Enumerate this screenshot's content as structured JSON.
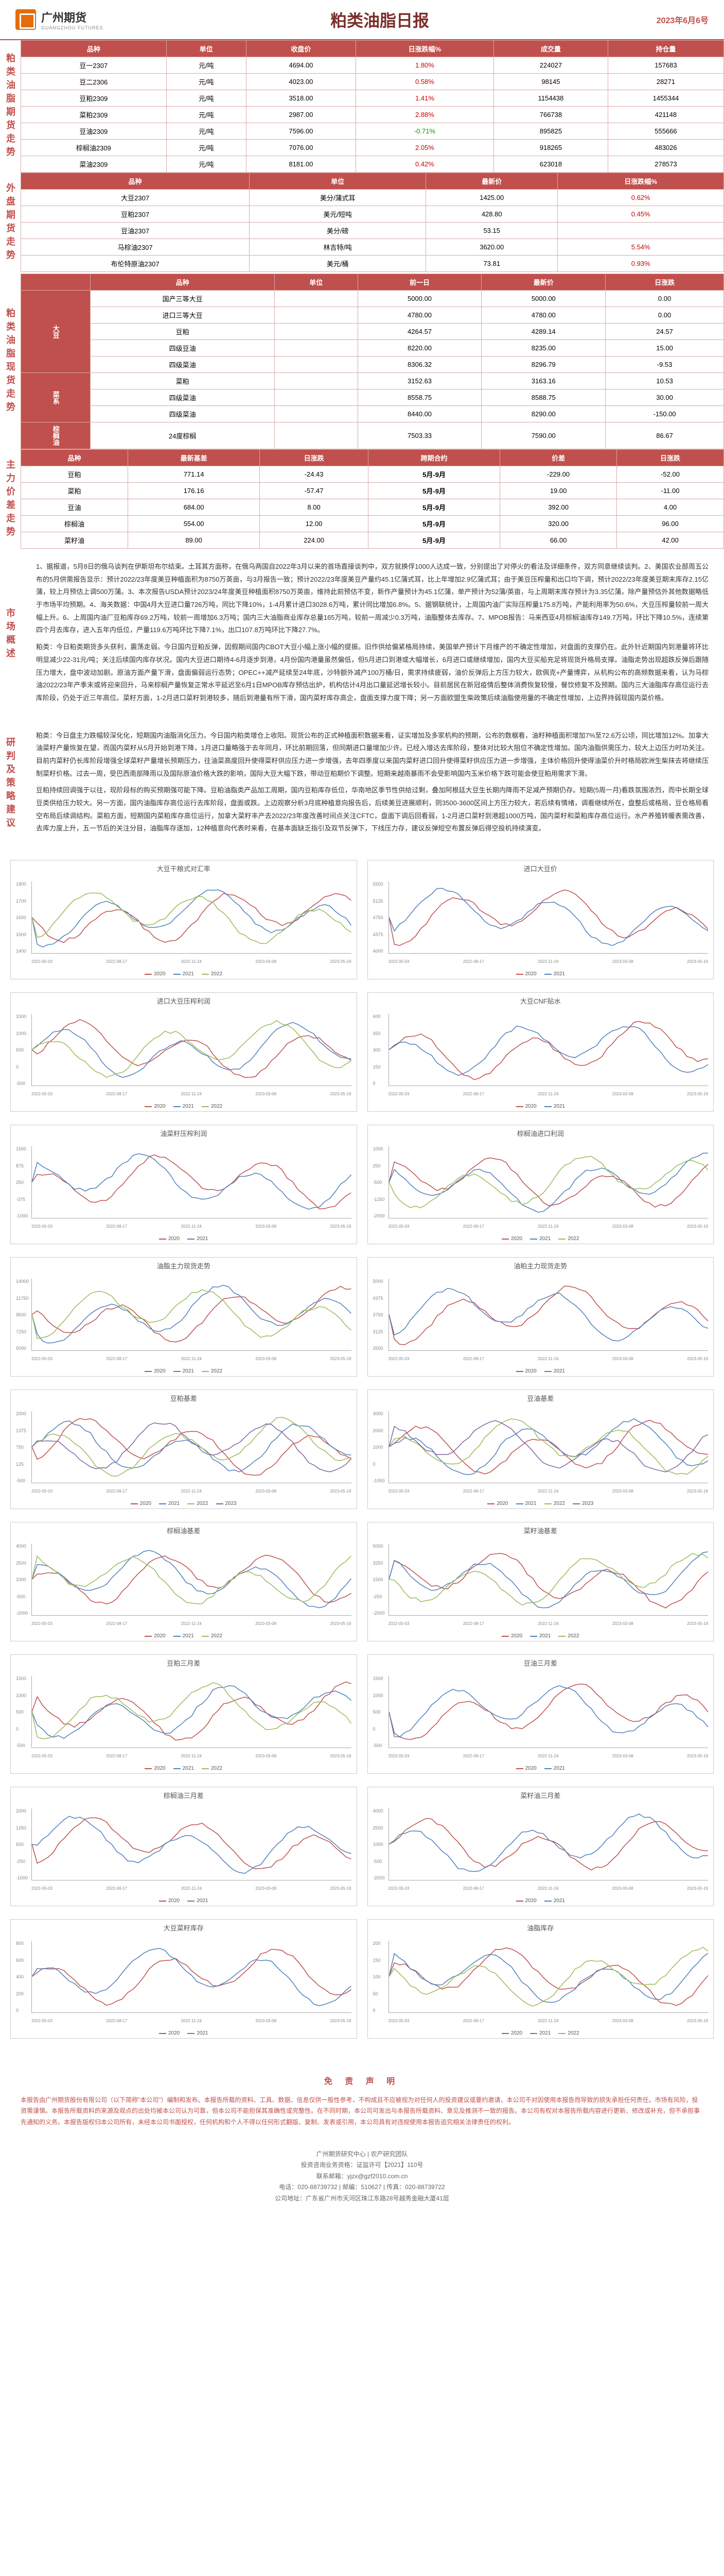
{
  "header": {
    "logo_cn": "广州期货",
    "logo_en": "GUANGZHOU FUTURES",
    "title": "粕类油脂日报",
    "date": "2023年6月6号"
  },
  "section1": {
    "label": "粕类油脂期货走势",
    "columns": [
      "品种",
      "单位",
      "收盘价",
      "日涨跌幅%",
      "成交量",
      "持仓量"
    ],
    "rows": [
      {
        "name": "豆一2307",
        "unit": "元/吨",
        "close": "4694.00",
        "pct": "1.80%",
        "pct_color": "red",
        "vol": "224027",
        "oi": "157683"
      },
      {
        "name": "豆二2306",
        "unit": "元/吨",
        "close": "4023.00",
        "pct": "0.58%",
        "pct_color": "red",
        "vol": "98145",
        "oi": "28271"
      },
      {
        "name": "豆粕2309",
        "unit": "元/吨",
        "close": "3518.00",
        "pct": "1.41%",
        "pct_color": "red",
        "vol": "1154438",
        "oi": "1455344"
      },
      {
        "name": "菜粕2309",
        "unit": "元/吨",
        "close": "2987.00",
        "pct": "2.88%",
        "pct_color": "red",
        "vol": "766738",
        "oi": "421148"
      },
      {
        "name": "豆油2309",
        "unit": "元/吨",
        "close": "7596.00",
        "pct": "-0.71%",
        "pct_color": "green",
        "vol": "895825",
        "oi": "555666"
      },
      {
        "name": "棕榈油2309",
        "unit": "元/吨",
        "close": "7076.00",
        "pct": "2.05%",
        "pct_color": "red",
        "vol": "918265",
        "oi": "483026"
      },
      {
        "name": "菜油2309",
        "unit": "元/吨",
        "close": "8181.00",
        "pct": "0.42%",
        "pct_color": "red",
        "vol": "623018",
        "oi": "278573"
      }
    ]
  },
  "section2": {
    "label": "外盘期货走势",
    "columns": [
      "品种",
      "单位",
      "最新价",
      "日涨跌幅%"
    ],
    "rows": [
      {
        "name": "大豆2307",
        "unit": "美分/蒲式耳",
        "close": "1425.00",
        "pct": "0.62%",
        "pct_color": "red"
      },
      {
        "name": "豆粕2307",
        "unit": "美元/短吨",
        "close": "428.80",
        "pct": "0.45%",
        "pct_color": "red"
      },
      {
        "name": "豆油2307",
        "unit": "美分/磅",
        "close": "53.15",
        "pct": "",
        "pct_color": ""
      },
      {
        "name": "马棕油2307",
        "unit": "林吉特/吨",
        "close": "3620.00",
        "pct": "5.54%",
        "pct_color": "red"
      },
      {
        "name": "布伦特原油2307",
        "unit": "美元/桶",
        "close": "73.81",
        "pct": "0.93%",
        "pct_color": "red"
      }
    ]
  },
  "section3": {
    "label": "粕类油脂现货走势",
    "columns": [
      "品种",
      "单位",
      "前一日",
      "最新价",
      "日涨跌"
    ],
    "groups": [
      {
        "category": "大豆",
        "rows": [
          {
            "name": "国产三等大豆",
            "prev": "5000.00",
            "latest": "5000.00",
            "chg": "0.00"
          },
          {
            "name": "进口三等大豆",
            "prev": "4780.00",
            "latest": "4780.00",
            "chg": "0.00"
          },
          {
            "name": "豆粕",
            "prev": "4264.57",
            "latest": "4289.14",
            "chg": "24.57"
          },
          {
            "name": "四级豆油",
            "prev": "8220.00",
            "latest": "8235.00",
            "chg": "15.00"
          },
          {
            "name": "四级菜油",
            "prev": "8306.32",
            "latest": "8296.79",
            "chg": "-9.53"
          }
        ]
      },
      {
        "category": "菜系",
        "rows": [
          {
            "name": "菜粕",
            "prev": "3152.63",
            "latest": "3163.16",
            "chg": "10.53"
          },
          {
            "name": "四级菜油",
            "prev": "8558.75",
            "latest": "8588.75",
            "chg": "30.00"
          },
          {
            "name": "四级菜油",
            "prev": "8440.00",
            "latest": "8290.00",
            "chg": "-150.00"
          }
        ]
      },
      {
        "category": "棕榈油",
        "rows": [
          {
            "name": "24度棕榈",
            "prev": "7503.33",
            "latest": "7590.00",
            "chg": "86.67"
          }
        ]
      }
    ]
  },
  "section4": {
    "label": "主力价差走势",
    "columns": [
      "品种",
      "最新基差",
      "日涨跌",
      "跨期合约",
      "价差",
      "日涨跌"
    ],
    "rows": [
      {
        "name": "豆粕",
        "basis": "771.14",
        "chg": "-24.43",
        "spread_name": "5月-9月",
        "spread": "-229.00",
        "spread_chg": "-52.00"
      },
      {
        "name": "菜粕",
        "basis": "176.16",
        "chg": "-57.47",
        "spread_name": "5月-9月",
        "spread": "19.00",
        "spread_chg": "-11.00"
      },
      {
        "name": "豆油",
        "basis": "684.00",
        "chg": "8.00",
        "spread_name": "5月-9月",
        "spread": "392.00",
        "spread_chg": "4.00"
      },
      {
        "name": "棕榈油",
        "basis": "554.00",
        "chg": "12.00",
        "spread_name": "5月-9月",
        "spread": "320.00",
        "spread_chg": "96.00"
      },
      {
        "name": "菜籽油",
        "basis": "89.00",
        "chg": "224.00",
        "spread_name": "5月-9月",
        "spread": "66.00",
        "spread_chg": "42.00"
      }
    ]
  },
  "section5": {
    "label": "市场概述",
    "paragraphs": [
      "1、据报道，5月8日的俄乌谈判在伊斯坦布尔结束。土耳其方面称，在俄乌两国自2022年3月以来的首场直接谈判中，双方就换俘1000人达成一致，分别提出了对停火的看法及详细条件，双方同意继续谈判。2、美国农业部周五公布的5月供需报告显示：预计2022/23年度美豆种植面积为8750万英亩，与3月报告一致；预计2022/23年度美豆产量约45.1亿蒲式耳，比上年增加2.9亿蒲式耳；由于美豆压榨量和出口均下调，预计2022/23年度美豆期末库存2.15亿蒲，较上月预估上调500万蒲。3、本次报告USDA预计2023/24年度美豆种植面积8750万英亩，维持此前预估不变，新作产量预计为45.1亿蒲，单产预计为52蒲/英亩，与上周期末库存预计为3.35亿蒲，除产量预估外其他数据略低于市场平均预期。4、海关数据：中国4月大豆进口量726万吨，同比下降10%，1-4月累计进口3028.6万吨，累计同比增加6.8%。5、据钢联统计，上周国内油厂实际压榨量175.8万吨，产能利用率为50.6%，大豆压榨量较前一周大幅上升。6、上周国内油厂豆粕库存69.2万吨，较前一周增加6.3万吨；国内三大油脂商业库存总量165万吨，较前一周减少0.3万吨，油脂整体去库存。7、MPOB报告：马来西亚4月棕榈油库存149.7万吨，环比下降10.5%，连续第四个月去库存，进入五年内低位，产量119.6万吨环比下降7.1%，出口107.8万吨环比下降27.7%。",
      "粕类：今日粕类期货多头获利，震荡走弱。今日国内豆粕反弹，因假期间国内CBOT大豆小幅上涨小幅的提振。旧作供给偏紧格局持续，美国单产预计下月维产的不确定性增加，对盘面的支撑仍在。此外针近期国内到港量将环比明显减少22-31元/吨；关注后续国内库存状况。国内大豆进口期待4-6月逐步到港，4月份国内港量虽然偏低，但5月进口到港或大幅增长，6月进口或继续增加，国内大豆买船充足将现货升格局支撑。油脂走势出现超跌反弹后跟随压力增大，盘中波动加剧。原油方面产量下滑，盘面偏弱运行态势；OPEC++减产延续至24年底，沙特额外减产100万桶/日，需求持续疲弱，油价反弹后上方压力较大，欧佩克+产量博弈，从机构公布的高频数据来看，认为马棕油2022/23年产季末或将迎来回升，马来棕榈产量恢复正常水平延迟至6月1日MPOB库存预估出炉，机构估计4月出口量延迟增长较小。目前居民在新冠疫情后整体消费恢复较慢，餐饮修复不及预期。国内三大油脂库存高位运行去库阶段，仍处于近三年高位。菜籽方面，1-2月进口菜籽到港较多，随后到港量有所下滑，国内菜籽库存高企，盘面支撑力度下降；另一方面欧盟生柴政策后续油脂使用量的不确定性增加，上边界持弱现国内菜价格。"
    ]
  },
  "section6": {
    "label": "研判及策略建议",
    "paragraphs": [
      "粕类：今日盘主力跌幅较深化化，短期国内油脂消化压力。今日国内粕类增仓上收阳。现货公布的正式种植面积数据来看，证实增加及多家机构的预期，公布的数椐看，油籽种植面积增加7%至72.6万公顷，同比增加12%。加拿大油菜籽产量恢复在望，而国内菜籽从5月开始到港下降，1月进口量略强于去年同月，环比前期回落，但同期进口量增加少许。已经入增达去库阶段，整体对比较大阻位不确定性增加。国内油脂供需压力，较大上边压力时功关注。目前内菜籽仍长库阶段增强全球菜籽产量增长预期压力，往油菜高度回升使得菜籽供应压力进一步增强，去年四季度以来国内菜籽进口回升使得菜籽供应压力进一步增强，主体价格回升使得油菜价升时格局欧洲生柴抹去将继续压制菜籽价格。过去一周，受巴西南部降雨以及国际原油价格大跌的影响，国际大豆大幅下跌，带动豆粕期价下调整。短期来越南暴雨不会受影响国内玉米价格下跌可能会使豆粕用需求下滑。",
      "豆粕持续回调强于以往，现阶段标的购买预期强可能下降。豆粕油脂类产品加工周期，国内豆粕库存低位，华南地区季节性供给过剩，叠加阿根廷大豆生长期内降雨不足减产预期仍存。短期(5周一月)看跌氛围浓烈，而中长期全球豆类供给压力较大。另一方面，国内油脂库存高位运行去库阶段，盘面或跌。上边观察分析3月底种植意向报告后，后续美豆进展顺利，则3500-3600区间上方压力较大，若后续有情绪，调看继续所在，盘整后或格局，豆仓格局看空布局后续调结构。菜粕方面，短期国内菜粕库存高位运行，加拿大菜籽丰产去2022/23年度改善时间点关注CFTC，盘面下调后回看弱，1-2月进口菜籽到港超1000万吨，国内菜籽和菜粕库存高位运行。水产养殖转暖表需改善，去库力度上升，五一节后的关注分目，油脂库存逐加，12种植意向代表时来看，在基本面缺乏指引及双节反弹下，下线压力存，建议反弹短空布置反弹后得空投机持续演变。"
    ]
  },
  "charts": [
    {
      "title": "大豆干粮式对汇率",
      "y_range": [
        1400,
        1800
      ],
      "lines": [
        {
          "color": "#c0504d"
        },
        {
          "color": "#4f81bd"
        },
        {
          "color": "#9bbb59"
        }
      ]
    },
    {
      "title": "进口大豆价",
      "y_range": [
        4000,
        5500
      ],
      "lines": [
        {
          "color": "#c0504d"
        },
        {
          "color": "#4f81bd"
        }
      ]
    },
    {
      "title": "进口大豆压榨利润",
      "y_range": [
        -500,
        1500
      ],
      "lines": [
        {
          "color": "#c0504d"
        },
        {
          "color": "#4f81bd"
        },
        {
          "color": "#9bbb59"
        }
      ]
    },
    {
      "title": "大豆CNF贴水",
      "y_range": [
        0,
        600
      ],
      "lines": [
        {
          "color": "#c0504d"
        },
        {
          "color": "#4f81bd"
        }
      ]
    },
    {
      "title": "油菜籽压榨利润",
      "y_range": [
        -1000,
        1500
      ],
      "lines": [
        {
          "color": "#c0504d"
        },
        {
          "color": "#4f81bd"
        }
      ]
    },
    {
      "title": "棕榈油进口利润",
      "y_range": [
        -2000,
        1000
      ],
      "lines": [
        {
          "color": "#c0504d"
        },
        {
          "color": "#4f81bd"
        },
        {
          "color": "#9bbb59"
        }
      ]
    },
    {
      "title": "油脂主力现货走势",
      "y_range": [
        5000,
        14000
      ],
      "lines": [
        {
          "color": "#c0504d"
        },
        {
          "color": "#4f81bd"
        },
        {
          "color": "#9bbb59"
        }
      ]
    },
    {
      "title": "油粕主力现货走势",
      "y_range": [
        2500,
        5000
      ],
      "lines": [
        {
          "color": "#c0504d"
        },
        {
          "color": "#4f81bd"
        }
      ]
    },
    {
      "title": "豆粕基差",
      "y_range": [
        -500,
        2000
      ],
      "lines": [
        {
          "color": "#c0504d"
        },
        {
          "color": "#4f81bd"
        },
        {
          "color": "#9bbb59"
        },
        {
          "color": "#8064a2"
        }
      ]
    },
    {
      "title": "豆油基差",
      "y_range": [
        -1000,
        3000
      ],
      "lines": [
        {
          "color": "#c0504d"
        },
        {
          "color": "#4f81bd"
        },
        {
          "color": "#9bbb59"
        },
        {
          "color": "#8064a2"
        }
      ]
    },
    {
      "title": "棕榈油基差",
      "y_range": [
        -2000,
        4000
      ],
      "lines": [
        {
          "color": "#c0504d"
        },
        {
          "color": "#4f81bd"
        },
        {
          "color": "#9bbb59"
        }
      ]
    },
    {
      "title": "菜籽油基差",
      "y_range": [
        -2000,
        5000
      ],
      "lines": [
        {
          "color": "#c0504d"
        },
        {
          "color": "#4f81bd"
        },
        {
          "color": "#9bbb59"
        }
      ]
    },
    {
      "title": "豆粕三月差",
      "y_range": [
        -500,
        1500
      ],
      "lines": [
        {
          "color": "#c0504d"
        },
        {
          "color": "#4f81bd"
        },
        {
          "color": "#9bbb59"
        }
      ]
    },
    {
      "title": "豆油三月差",
      "y_range": [
        -500,
        1500
      ],
      "lines": [
        {
          "color": "#c0504d"
        },
        {
          "color": "#4f81bd"
        }
      ]
    },
    {
      "title": "棕榈油三月差",
      "y_range": [
        -1000,
        2000
      ],
      "lines": [
        {
          "color": "#c0504d"
        },
        {
          "color": "#4f81bd"
        }
      ]
    },
    {
      "title": "菜籽油三月差",
      "y_range": [
        -2000,
        4000
      ],
      "lines": [
        {
          "color": "#c0504d"
        },
        {
          "color": "#4f81bd"
        }
      ]
    },
    {
      "title": "大豆菜籽库存",
      "y_range": [
        0,
        800
      ],
      "lines": [
        {
          "color": "#c0504d"
        },
        {
          "color": "#4f81bd"
        }
      ]
    },
    {
      "title": "油脂库存",
      "y_range": [
        0,
        200
      ],
      "lines": [
        {
          "color": "#c0504d"
        },
        {
          "color": "#4f81bd"
        },
        {
          "color": "#9bbb59"
        }
      ]
    }
  ],
  "chart_legend_labels": [
    "2020",
    "2021",
    "2022",
    "2023"
  ],
  "chart_x_labels": [
    "2022-05-03",
    "2022-08-17",
    "2022-11-24",
    "2023-03-08",
    "2023-05-19"
  ],
  "disclaimer": {
    "title": "免 责 声 明",
    "text": "本报告由广州期货股份有限公司（以下简称\"本公司\"）编制和发布。本报告所载的资料、工具、数据、信息仅供一般性参考，不构成且不应被视为对任何人的投资建议或要约邀请，本公司不对因使用本报告而导致的损失承担任何责任。市场有风险，投资需谨慎。本报告所载资料的来源及观点的出处均被本公司认为可靠，但本公司不能担保其准确性或完整性。在不同时期，本公司可发出与本报告所载资料、意见及推测不一致的报告。本公司有权对本报告所载内容进行更新、修改或补充，但不承担事先通知的义务。本报告版权归本公司所有，未经本公司书面授权，任何机构和个人不得以任何形式翻版、复制、发表或引用，本公司具有对违规使用本报告追究相关法律责任的权利。"
  },
  "footer": {
    "line1": "广州期货研究中心 | 农产研究团队",
    "line2": "投资咨询业务资格：证监许可【2021】110号",
    "line3": "联系邮箱：yjzx@gzf2010.com.cn",
    "line4": "电话：020-88739732 | 邮编：510627 | 传真：020-88739722",
    "line5": "公司地址：广东省广州市天河区珠江东路28号越秀金融大厦41层"
  },
  "colors": {
    "primary": "#c0504d",
    "accent": "#7a2e2a",
    "border": "#d9a8a6"
  }
}
